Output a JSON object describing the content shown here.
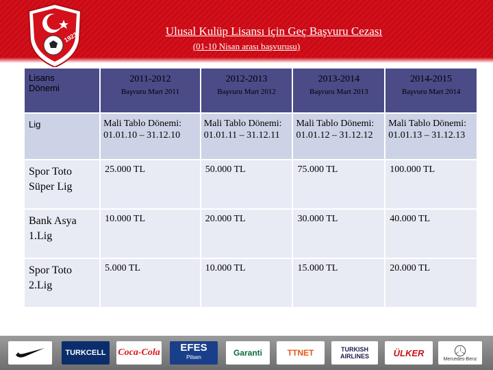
{
  "header": {
    "title": "Ulusal Kulüp Lisansı için Geç Başvuru Cezası",
    "subtitle": "(01-10 Nisan arası başvurusu)",
    "crest_year": "1923",
    "colors": {
      "band": "#d4101b",
      "table_header": "#4a4b87",
      "row_light": "#e8ebf4",
      "row_mid": "#cdd3e6"
    }
  },
  "table": {
    "corner_label_line1": "Lisans",
    "corner_label_line2": "Dönemi",
    "seasons": [
      {
        "year": "2011-2012",
        "application": "Başvuru Mart 2011"
      },
      {
        "year": "2012-2013",
        "application": "Başvuru Mart 2012"
      },
      {
        "year": "2013-2014",
        "application": "Başvuru Mart 2013"
      },
      {
        "year": "2014-2015",
        "application": "Başvuru Mart 2014"
      }
    ],
    "lig_label": "Lig",
    "periods": [
      {
        "line1": "Mali Tablo Dönemi:",
        "line2": "01.01.10 – 31.12.10"
      },
      {
        "line1": "Mali Tablo Dönemi:",
        "line2": "01.01.11 – 31.12.11"
      },
      {
        "line1": "Mali Tablo Dönemi:",
        "line2": "01.01.12 – 31.12.12"
      },
      {
        "line1": "Mali Tablo Dönemi:",
        "line2": "01.01.13 – 31.12.13"
      }
    ],
    "rows": [
      {
        "league_line1": "Spor Toto",
        "league_line2": "Süper Lig",
        "fees": [
          "25.000 TL",
          "50.000 TL",
          "75.000 TL",
          "100.000 TL"
        ]
      },
      {
        "league_line1": "Bank Asya",
        "league_line2": "1.Lig",
        "fees": [
          "10.000 TL",
          "20.000 TL",
          "30.000 TL",
          "40.000 TL"
        ]
      },
      {
        "league_line1": "Spor Toto",
        "league_line2": "2.Lig",
        "fees": [
          "5.000 TL",
          "10.000 TL",
          "15.000 TL",
          "20.000 TL"
        ]
      }
    ]
  },
  "sponsors": [
    {
      "name": "",
      "icon": "nike-swoosh-icon"
    },
    {
      "name": "TURKCELL",
      "icon": "turkcell-logo"
    },
    {
      "name": "Coca-Cola",
      "icon": "coca-cola-logo"
    },
    {
      "name": "EFES",
      "sub": "Pilsen",
      "icon": "efes-logo"
    },
    {
      "name": "Garanti",
      "icon": "garanti-logo"
    },
    {
      "name": "TTNET",
      "icon": "ttnet-logo"
    },
    {
      "name": "TURKISH",
      "sub": "AIRLINES",
      "icon": "turkish-airlines-logo"
    },
    {
      "name": "ÜLKER",
      "icon": "ulker-logo"
    },
    {
      "name": "Mercedes-Benz",
      "icon": "mercedes-star-icon"
    }
  ]
}
